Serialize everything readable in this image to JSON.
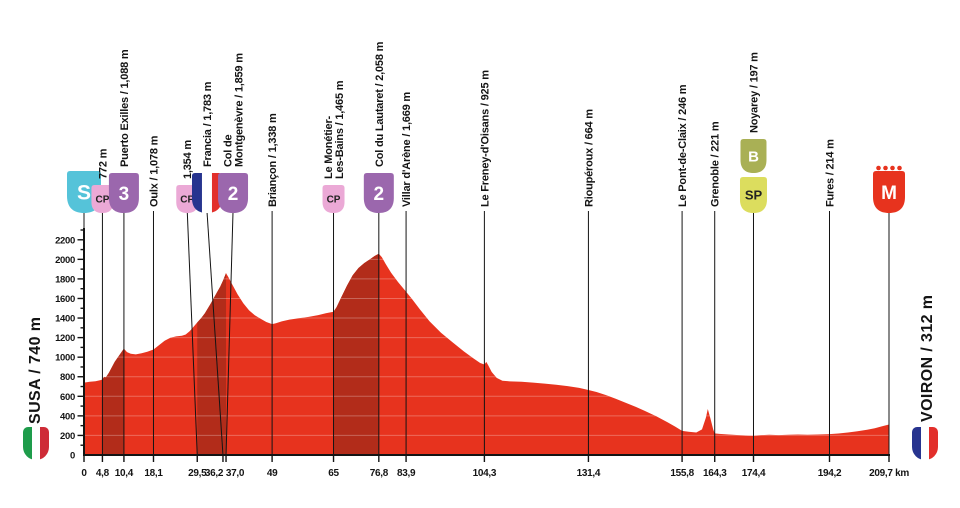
{
  "stage": {
    "start": {
      "label": "SUSA / 740 m",
      "flag": "it"
    },
    "finish": {
      "label": "VOIRON / 312 m",
      "flag": "fr"
    }
  },
  "colors": {
    "profile": "#E7331E",
    "climb": "#B22C1A",
    "grid": "rgba(255,255,255,0.28)",
    "axis": "#141414",
    "start_badge": "#55C3D9",
    "cp_badge": "#EBA9D6",
    "category_badge": "#9B67AD",
    "bonus_badge": "#A9B055",
    "sprint_badge": "#DCDD5E",
    "finish_badge": "#E7331E",
    "flag_fr": [
      "#27348F",
      "#FFFFFF",
      "#E22F2B"
    ],
    "flag_it": [
      "#1E9C4B",
      "#FFFFFF",
      "#CE2B37"
    ]
  },
  "chart_data": {
    "type": "area",
    "x_unit": "km",
    "y_unit": "m",
    "x_total_km": 209.7,
    "ylim": [
      0,
      2300
    ],
    "y_ticks": [
      0,
      200,
      400,
      600,
      800,
      1000,
      1200,
      1400,
      1600,
      1800,
      2000,
      2200
    ],
    "y_minor_step": 100,
    "grid": "horizontal-inside-area",
    "legend": "none",
    "profile_points": [
      [
        0,
        740
      ],
      [
        1.5,
        748
      ],
      [
        3,
        753
      ],
      [
        4.3,
        766
      ],
      [
        4.8,
        772
      ],
      [
        5.2,
        798
      ],
      [
        5.7,
        793
      ],
      [
        6.5,
        842
      ],
      [
        8,
        952
      ],
      [
        9.2,
        1020
      ],
      [
        10.4,
        1088
      ],
      [
        11.2,
        1052
      ],
      [
        12.2,
        1034
      ],
      [
        13.5,
        1028
      ],
      [
        15,
        1040
      ],
      [
        16.5,
        1056
      ],
      [
        18.1,
        1078
      ],
      [
        19.5,
        1122
      ],
      [
        21,
        1168
      ],
      [
        22.5,
        1198
      ],
      [
        24,
        1212
      ],
      [
        25.5,
        1220
      ],
      [
        26.5,
        1232
      ],
      [
        27.5,
        1266
      ],
      [
        28.5,
        1308
      ],
      [
        29.5,
        1354
      ],
      [
        30.5,
        1398
      ],
      [
        31.5,
        1448
      ],
      [
        33,
        1548
      ],
      [
        34.5,
        1652
      ],
      [
        35.5,
        1722
      ],
      [
        36.2,
        1783
      ],
      [
        37,
        1859
      ],
      [
        37.6,
        1820
      ],
      [
        38.5,
        1752
      ],
      [
        40,
        1642
      ],
      [
        41.5,
        1552
      ],
      [
        43,
        1478
      ],
      [
        44.5,
        1428
      ],
      [
        46,
        1392
      ],
      [
        47.5,
        1360
      ],
      [
        49,
        1338
      ],
      [
        50,
        1346
      ],
      [
        51.5,
        1366
      ],
      [
        53.5,
        1384
      ],
      [
        56,
        1398
      ],
      [
        58.5,
        1412
      ],
      [
        61,
        1430
      ],
      [
        63,
        1448
      ],
      [
        65,
        1465
      ],
      [
        65.8,
        1512
      ],
      [
        67,
        1610
      ],
      [
        68.5,
        1732
      ],
      [
        70,
        1838
      ],
      [
        71.5,
        1912
      ],
      [
        73,
        1962
      ],
      [
        74.5,
        2002
      ],
      [
        75.7,
        2034
      ],
      [
        76.8,
        2058
      ],
      [
        77.6,
        2022
      ],
      [
        78.6,
        1952
      ],
      [
        80,
        1862
      ],
      [
        81.8,
        1768
      ],
      [
        83.9,
        1669
      ],
      [
        85.5,
        1592
      ],
      [
        87.5,
        1488
      ],
      [
        90,
        1368
      ],
      [
        93,
        1250
      ],
      [
        96,
        1152
      ],
      [
        99,
        1058
      ],
      [
        101.5,
        986
      ],
      [
        103.2,
        940
      ],
      [
        104.3,
        925
      ],
      [
        104.8,
        952
      ],
      [
        105.3,
        918
      ],
      [
        106.2,
        848
      ],
      [
        107.5,
        788
      ],
      [
        109,
        760
      ],
      [
        111,
        752
      ],
      [
        114,
        748
      ],
      [
        117,
        740
      ],
      [
        120,
        730
      ],
      [
        123,
        718
      ],
      [
        126,
        704
      ],
      [
        129,
        686
      ],
      [
        131.4,
        664
      ],
      [
        133.5,
        644
      ],
      [
        136,
        612
      ],
      [
        138.5,
        576
      ],
      [
        141,
        536
      ],
      [
        143.5,
        496
      ],
      [
        146,
        452
      ],
      [
        149,
        398
      ],
      [
        152,
        334
      ],
      [
        154,
        290
      ],
      [
        155.8,
        246
      ],
      [
        157.5,
        237
      ],
      [
        159.5,
        230
      ],
      [
        161,
        262
      ],
      [
        162,
        382
      ],
      [
        162.5,
        470
      ],
      [
        163.2,
        370
      ],
      [
        163.9,
        262
      ],
      [
        164.3,
        221
      ],
      [
        165.5,
        216
      ],
      [
        167,
        212
      ],
      [
        169,
        206
      ],
      [
        171,
        201
      ],
      [
        173,
        198
      ],
      [
        174.4,
        197
      ],
      [
        176,
        202
      ],
      [
        178.5,
        206
      ],
      [
        181,
        203
      ],
      [
        183.5,
        206
      ],
      [
        186,
        210
      ],
      [
        188.5,
        208
      ],
      [
        191,
        210
      ],
      [
        194.2,
        214
      ],
      [
        196.5,
        220
      ],
      [
        199,
        230
      ],
      [
        201.5,
        242
      ],
      [
        204,
        258
      ],
      [
        206,
        274
      ],
      [
        207.8,
        292
      ],
      [
        209.7,
        312
      ]
    ],
    "climb_segments": [
      {
        "from_km": 4.8,
        "to_km": 10.4
      },
      {
        "from_km": 29.5,
        "to_km": 37.0
      },
      {
        "from_km": 65,
        "to_km": 76.8
      }
    ],
    "x_ticks": [
      {
        "km": 0,
        "label": "0"
      },
      {
        "km": 4.8,
        "label": "4,8"
      },
      {
        "km": 10.4,
        "label": "10,4"
      },
      {
        "km": 18.1,
        "label": "18,1"
      },
      {
        "km": 29.5,
        "label": "29,5"
      },
      {
        "km": 36.2,
        "label": "36,2",
        "dx": -9
      },
      {
        "km": 37.0,
        "label": "37,0",
        "dx": 9
      },
      {
        "km": 49,
        "label": "49"
      },
      {
        "km": 65,
        "label": "65"
      },
      {
        "km": 76.8,
        "label": "76,8"
      },
      {
        "km": 83.9,
        "label": "83,9"
      },
      {
        "km": 104.3,
        "label": "104,3"
      },
      {
        "km": 131.4,
        "label": "131,4"
      },
      {
        "km": 155.8,
        "label": "155,8"
      },
      {
        "km": 164.3,
        "label": "164,3"
      },
      {
        "km": 174.4,
        "label": "174,4"
      },
      {
        "km": 194.2,
        "label": "194,2"
      },
      {
        "km": 209.7,
        "label": "209,7 km"
      }
    ],
    "waypoints": [
      {
        "km": 0,
        "badges": [
          {
            "type": "start",
            "text": "S"
          }
        ],
        "label_lines": []
      },
      {
        "km": 4.8,
        "badges": [
          {
            "type": "checkpoint",
            "text": "CP"
          }
        ],
        "label_lines": [
          "772 m"
        ]
      },
      {
        "km": 10.4,
        "badges": [
          {
            "type": "category",
            "text": "3"
          }
        ],
        "label_lines": [
          "Puerto Exilles / 1,088 m"
        ]
      },
      {
        "km": 18.1,
        "badges": [],
        "label_lines": [
          "Oulx / 1,078 m"
        ]
      },
      {
        "km": 29.5,
        "badges": [
          {
            "type": "checkpoint",
            "text": "CP"
          }
        ],
        "label_lines": [
          "1,354 m"
        ],
        "dx": -10
      },
      {
        "km": 36.2,
        "badges": [
          {
            "type": "flag-france",
            "text": ""
          }
        ],
        "label_lines": [
          "Francia / 1,783 m"
        ],
        "dx": -16
      },
      {
        "km": 37.0,
        "badges": [
          {
            "type": "category",
            "text": "2"
          }
        ],
        "label_lines": [
          "Col de",
          "Montgenèvre / 1,859 m"
        ],
        "dx": 7
      },
      {
        "km": 49,
        "badges": [],
        "label_lines": [
          "Briançon / 1,338 m"
        ]
      },
      {
        "km": 65,
        "badges": [
          {
            "type": "checkpoint",
            "text": "CP"
          }
        ],
        "label_lines": [
          "Le Monétier-",
          "Les-Bains / 1,465 m"
        ]
      },
      {
        "km": 76.8,
        "badges": [
          {
            "type": "category",
            "text": "2"
          }
        ],
        "label_lines": [
          "Col du Lautaret / 2,058 m"
        ]
      },
      {
        "km": 83.9,
        "badges": [],
        "label_lines": [
          "Villar d'Arène / 1,669 m"
        ]
      },
      {
        "km": 104.3,
        "badges": [],
        "label_lines": [
          "Le Freney-d'Oisans / 925 m"
        ]
      },
      {
        "km": 131.4,
        "badges": [],
        "label_lines": [
          "Rioupéroux / 664 m"
        ]
      },
      {
        "km": 155.8,
        "badges": [],
        "label_lines": [
          "Le Pont-de-Claix / 246 m"
        ]
      },
      {
        "km": 164.3,
        "badges": [],
        "label_lines": [
          "Grenoble / 221 m"
        ]
      },
      {
        "km": 174.4,
        "badges": [
          {
            "type": "bonus",
            "text": "B"
          },
          {
            "type": "sprint",
            "text": "SP"
          }
        ],
        "label_lines": [
          "Noyarey / 197 m"
        ]
      },
      {
        "km": 194.2,
        "badges": [],
        "label_lines": [
          "Fures / 214 m"
        ]
      },
      {
        "km": 209.7,
        "badges": [
          {
            "type": "finish",
            "text": "M"
          }
        ],
        "label_lines": []
      }
    ]
  }
}
